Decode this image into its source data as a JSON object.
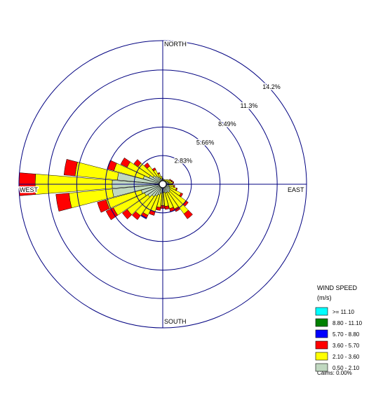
{
  "chart_data": {
    "type": "windrose",
    "directions": [
      0,
      10,
      20,
      30,
      40,
      50,
      60,
      70,
      80,
      90,
      100,
      110,
      120,
      130,
      140,
      150,
      160,
      170,
      180,
      190,
      200,
      210,
      220,
      230,
      240,
      250,
      260,
      270,
      280,
      290,
      300,
      310,
      320,
      330,
      340,
      350
    ],
    "compass": [
      "NORTH",
      "EAST",
      "SOUTH",
      "WEST"
    ],
    "rlim": [
      0,
      14.2
    ],
    "rticks": [
      {
        "value": 2.83,
        "label": "2.83%"
      },
      {
        "value": 5.66,
        "label": "5.66%"
      },
      {
        "value": 8.49,
        "label": "8.49%"
      },
      {
        "value": 11.3,
        "label": "11.3%"
      },
      {
        "value": 14.2,
        "label": "14.2%"
      }
    ],
    "legend_title": "WIND SPEED",
    "legend_unit": "(m/s)",
    "calms_label": "Calms: 0.00%",
    "series": [
      {
        "name": "0.50 - 2.10",
        "color": "#c0d8c0",
        "values": [
          0.4,
          0.35,
          0.35,
          0.35,
          0.4,
          0.45,
          0.5,
          0.55,
          0.6,
          0.55,
          0.6,
          0.7,
          0.8,
          0.9,
          1.0,
          0.9,
          0.9,
          0.8,
          0.8,
          0.9,
          1.1,
          1.3,
          1.5,
          1.8,
          2.0,
          2.2,
          5.0,
          5.0,
          4.5,
          2.0,
          1.5,
          1.2,
          1.0,
          0.8,
          0.6,
          0.5
        ]
      },
      {
        "name": "2.10 - 3.60",
        "color": "#ffff00",
        "values": [
          0.2,
          0.15,
          0.15,
          0.15,
          0.2,
          0.25,
          0.3,
          0.35,
          0.4,
          0.35,
          0.5,
          0.7,
          1.2,
          1.9,
          2.6,
          1.8,
          1.6,
          1.4,
          1.3,
          1.4,
          1.7,
          2.1,
          2.3,
          2.5,
          3.4,
          3.6,
          4.3,
          7.6,
          4.2,
          3.0,
          2.4,
          1.8,
          1.2,
          0.8,
          0.5,
          0.3
        ]
      },
      {
        "name": "3.60 - 5.70",
        "color": "#ff0000",
        "values": [
          0,
          0,
          0,
          0,
          0,
          0,
          0.1,
          0.1,
          0.1,
          0.1,
          0.1,
          0.1,
          0.2,
          0.3,
          0.6,
          0.3,
          0.3,
          0.3,
          0.3,
          0.3,
          0.4,
          0.3,
          0.5,
          0.6,
          0.8,
          0.9,
          1.3,
          1.6,
          1.1,
          0.7,
          0.7,
          0.5,
          0.4,
          0.2,
          0.1,
          0
        ]
      },
      {
        "name": "5.70 - 8.80",
        "color": "#0000ff",
        "values": [
          0,
          0,
          0,
          0,
          0,
          0,
          0,
          0,
          0,
          0,
          0,
          0,
          0,
          0,
          0,
          0,
          0,
          0,
          0,
          0,
          0,
          0.1,
          0,
          0,
          0,
          0,
          0,
          0,
          0,
          0,
          0,
          0,
          0,
          0,
          0,
          0
        ]
      },
      {
        "name": "8.80 - 11.10",
        "color": "#008000",
        "values": [
          0,
          0,
          0,
          0,
          0,
          0,
          0,
          0,
          0,
          0,
          0,
          0,
          0,
          0,
          0,
          0,
          0,
          0,
          0,
          0,
          0,
          0,
          0,
          0,
          0,
          0,
          0,
          0,
          0,
          0,
          0,
          0,
          0,
          0,
          0,
          0
        ]
      },
      {
        "name": ">= 11.10",
        "color": "#00ffff",
        "values": [
          0,
          0,
          0,
          0,
          0,
          0,
          0,
          0,
          0,
          0,
          0,
          0,
          0,
          0,
          0,
          0,
          0,
          0,
          0,
          0,
          0,
          0,
          0,
          0,
          0,
          0,
          0,
          0,
          0,
          0,
          0,
          0,
          0,
          0,
          0,
          0
        ]
      }
    ]
  }
}
